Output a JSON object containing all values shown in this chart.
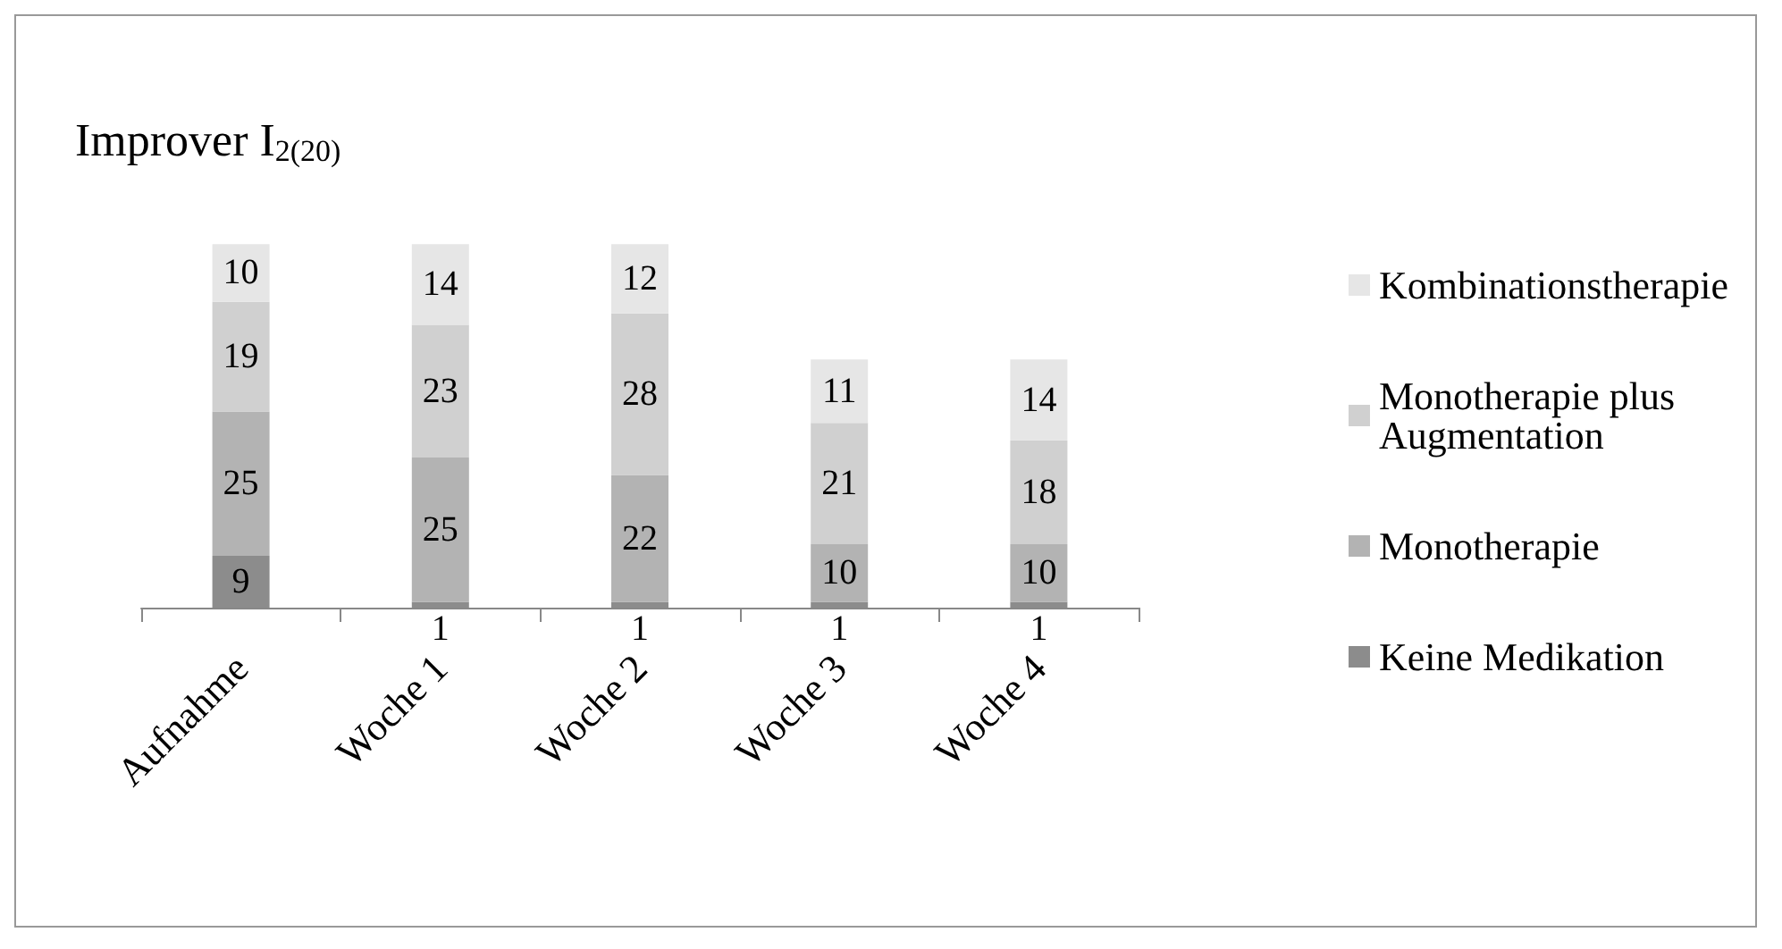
{
  "chart_data": {
    "type": "bar",
    "title": "Improver I$_{2(20)}$",
    "stacked": true,
    "data_labels": true,
    "legend": "right",
    "grid": false,
    "categories": [
      "Aufnahme",
      "Woche 1",
      "Woche 2",
      "Woche 3",
      "Woche 4"
    ],
    "series": [
      {
        "name": "Keine Medikation",
        "color": "#8c8c8c",
        "values": [
          9,
          1,
          1,
          1,
          1
        ]
      },
      {
        "name": "Monotherapie",
        "color": "#b3b3b3",
        "values": [
          25,
          25,
          22,
          10,
          10
        ]
      },
      {
        "name": "Monotherapie plus Augmentation",
        "color": "#d0d0d0",
        "values": [
          19,
          23,
          28,
          21,
          18
        ]
      },
      {
        "name": "Kombinationstherapie",
        "color": "#e6e6e6",
        "values": [
          10,
          14,
          12,
          11,
          14
        ]
      }
    ]
  }
}
